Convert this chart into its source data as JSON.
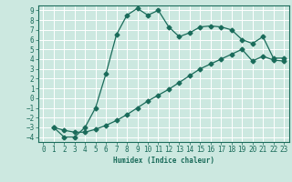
{
  "xlabel": "Humidex (Indice chaleur)",
  "background_color": "#cce8e0",
  "grid_color": "#ffffff",
  "line_color": "#1a6b5a",
  "xlim": [
    -0.5,
    23.5
  ],
  "ylim": [
    -4.5,
    9.5
  ],
  "xticks": [
    0,
    1,
    2,
    3,
    4,
    5,
    6,
    7,
    8,
    9,
    10,
    11,
    12,
    13,
    14,
    15,
    16,
    17,
    18,
    19,
    20,
    21,
    22,
    23
  ],
  "yticks": [
    -4,
    -3,
    -2,
    -1,
    0,
    1,
    2,
    3,
    4,
    5,
    6,
    7,
    8,
    9
  ],
  "line1_x": [
    1,
    2,
    3,
    4,
    5,
    6,
    7,
    8,
    9,
    10,
    11,
    12,
    13,
    14,
    15,
    16,
    17,
    18,
    19,
    20,
    21,
    22,
    23
  ],
  "line1_y": [
    -3.0,
    -4.0,
    -4.0,
    -3.0,
    -1.0,
    2.5,
    6.5,
    8.5,
    9.2,
    8.5,
    9.0,
    7.3,
    6.3,
    6.7,
    7.3,
    7.4,
    7.3,
    7.0,
    6.0,
    5.6,
    6.3,
    4.1,
    4.1
  ],
  "line2_x": [
    1,
    2,
    3,
    4,
    5,
    6,
    7,
    8,
    9,
    10,
    11,
    12,
    13,
    14,
    15,
    16,
    17,
    18,
    19,
    20,
    21,
    22,
    23
  ],
  "line2_y": [
    -3.0,
    -3.3,
    -3.5,
    -3.5,
    -3.2,
    -2.8,
    -2.3,
    -1.7,
    -1.0,
    -0.3,
    0.3,
    0.9,
    1.6,
    2.3,
    3.0,
    3.5,
    4.0,
    4.5,
    5.0,
    3.8,
    4.3,
    3.9,
    3.8
  ],
  "marker_size": 2.5,
  "linewidth": 0.9,
  "tick_fontsize": 5.5
}
